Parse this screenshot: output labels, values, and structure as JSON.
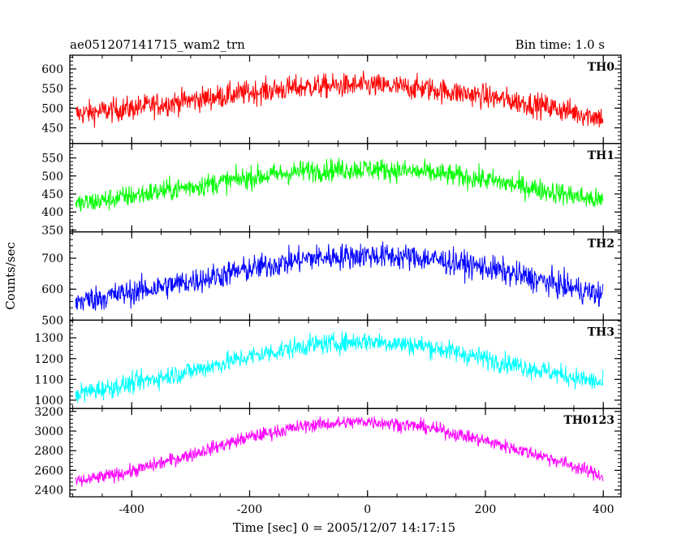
{
  "title_left": "ae051207141715_wam2_trn",
  "title_right": "Bin time: 1.0 s",
  "ylabel": "Counts/sec",
  "xlabel": "Time [sec] 0 = 2005/12/07 14:17:15",
  "chart_data": {
    "type": "line",
    "title": "ae051207141715_wam2_trn",
    "subtitle": "Bin time: 1.0 s",
    "xlabel": "Time [sec] 0 = 2005/12/07 14:17:15",
    "ylabel": "Counts/sec",
    "xlim": [
      -505,
      430
    ],
    "xticks": [
      -400,
      -200,
      0,
      200,
      400
    ],
    "grid": false,
    "panels": [
      {
        "name": "TH0",
        "color": "#ff0000",
        "ylim": [
          410,
          635
        ],
        "yticks": [
          450,
          500,
          550,
          600
        ],
        "x": [
          -495,
          -400,
          -300,
          -200,
          -100,
          0,
          100,
          200,
          300,
          400
        ],
        "y": [
          485,
          500,
          520,
          540,
          555,
          558,
          550,
          530,
          505,
          475
        ],
        "noise": 22
      },
      {
        "name": "TH1",
        "color": "#00ff00",
        "ylim": [
          345,
          590
        ],
        "yticks": [
          350,
          400,
          450,
          500,
          550
        ],
        "x": [
          -495,
          -400,
          -300,
          -200,
          -100,
          0,
          100,
          200,
          300,
          400
        ],
        "y": [
          420,
          445,
          470,
          495,
          515,
          520,
          510,
          490,
          460,
          430
        ],
        "noise": 22
      },
      {
        "name": "TH2",
        "color": "#0000ff",
        "ylim": [
          500,
          785
        ],
        "yticks": [
          500,
          600,
          700
        ],
        "x": [
          -495,
          -400,
          -300,
          -200,
          -100,
          0,
          100,
          200,
          300,
          400
        ],
        "y": [
          560,
          590,
          625,
          665,
          700,
          710,
          700,
          670,
          625,
          580
        ],
        "noise": 30
      },
      {
        "name": "TH3",
        "color": "#00ffff",
        "ylim": [
          960,
          1385
        ],
        "yticks": [
          1000,
          1100,
          1200,
          1300
        ],
        "x": [
          -495,
          -400,
          -300,
          -200,
          -100,
          0,
          100,
          200,
          300,
          400
        ],
        "y": [
          1030,
          1080,
          1140,
          1210,
          1265,
          1285,
          1260,
          1200,
          1140,
          1080
        ],
        "noise": 35
      },
      {
        "name": "TH0123",
        "color": "#ff00ff",
        "ylim": [
          2330,
          3230
        ],
        "yticks": [
          2400,
          2600,
          2800,
          3000,
          3200
        ],
        "x": [
          -495,
          -400,
          -300,
          -200,
          -100,
          0,
          100,
          200,
          300,
          400
        ],
        "y": [
          2480,
          2590,
          2760,
          2940,
          3060,
          3100,
          3040,
          2900,
          2740,
          2540
        ],
        "noise": 50
      }
    ]
  }
}
